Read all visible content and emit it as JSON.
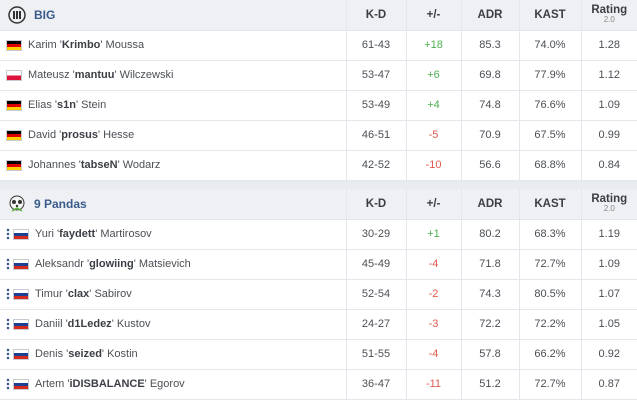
{
  "headers": {
    "kd": "K-D",
    "diff": "+/-",
    "adr": "ADR",
    "kast": "KAST",
    "rating": "Rating",
    "rating_sub": "2.0"
  },
  "teams": [
    {
      "name": "BIG",
      "players": [
        {
          "first": "Karim '",
          "nick": "Krimbo",
          "last": "' Moussa",
          "flag": "de",
          "kd": "61-43",
          "diff": "+18",
          "adr": "85.3",
          "kast": "74.0%",
          "rating": "1.28"
        },
        {
          "first": "Mateusz '",
          "nick": "mantuu",
          "last": "' Wilczewski",
          "flag": "pl",
          "kd": "53-47",
          "diff": "+6",
          "adr": "69.8",
          "kast": "77.9%",
          "rating": "1.12"
        },
        {
          "first": "Elias '",
          "nick": "s1n",
          "last": "' Stein",
          "flag": "de",
          "kd": "53-49",
          "diff": "+4",
          "adr": "74.8",
          "kast": "76.6%",
          "rating": "1.09"
        },
        {
          "first": "David '",
          "nick": "prosus",
          "last": "' Hesse",
          "flag": "de",
          "kd": "46-51",
          "diff": "-5",
          "adr": "70.9",
          "kast": "67.5%",
          "rating": "0.99"
        },
        {
          "first": "Johannes '",
          "nick": "tabseN",
          "last": "' Wodarz",
          "flag": "de",
          "kd": "42-52",
          "diff": "-10",
          "adr": "56.6",
          "kast": "68.8%",
          "rating": "0.84"
        }
      ]
    },
    {
      "name": "9 Pandas",
      "players": [
        {
          "first": "Yuri '",
          "nick": "faydett",
          "last": "' Martirosov",
          "flag": "ru",
          "kd": "30-29",
          "diff": "+1",
          "adr": "80.2",
          "kast": "68.3%",
          "rating": "1.19"
        },
        {
          "first": "Aleksandr '",
          "nick": "glowiing",
          "last": "' Matsievich",
          "flag": "ru",
          "kd": "45-49",
          "diff": "-4",
          "adr": "71.8",
          "kast": "72.7%",
          "rating": "1.09"
        },
        {
          "first": "Timur '",
          "nick": "clax",
          "last": "' Sabirov",
          "flag": "ru",
          "kd": "52-54",
          "diff": "-2",
          "adr": "74.3",
          "kast": "80.5%",
          "rating": "1.07"
        },
        {
          "first": "Daniil '",
          "nick": "d1Ledez",
          "last": "' Kustov",
          "flag": "ru",
          "kd": "24-27",
          "diff": "-3",
          "adr": "72.2",
          "kast": "72.2%",
          "rating": "1.05"
        },
        {
          "first": "Denis '",
          "nick": "seized",
          "last": "' Kostin",
          "flag": "ru",
          "kd": "51-55",
          "diff": "-4",
          "adr": "57.8",
          "kast": "66.2%",
          "rating": "0.92"
        },
        {
          "first": "Artem '",
          "nick": "iDISBALANCE",
          "last": "' Egorov",
          "flag": "ru",
          "kd": "36-47",
          "diff": "-11",
          "adr": "51.2",
          "kast": "72.7%",
          "rating": "0.87"
        }
      ]
    }
  ],
  "colors": {
    "positive": "#4caf50",
    "negative": "#e25a4e",
    "team_name": "#3a5b8c",
    "header_bg": "#eef0f3"
  }
}
